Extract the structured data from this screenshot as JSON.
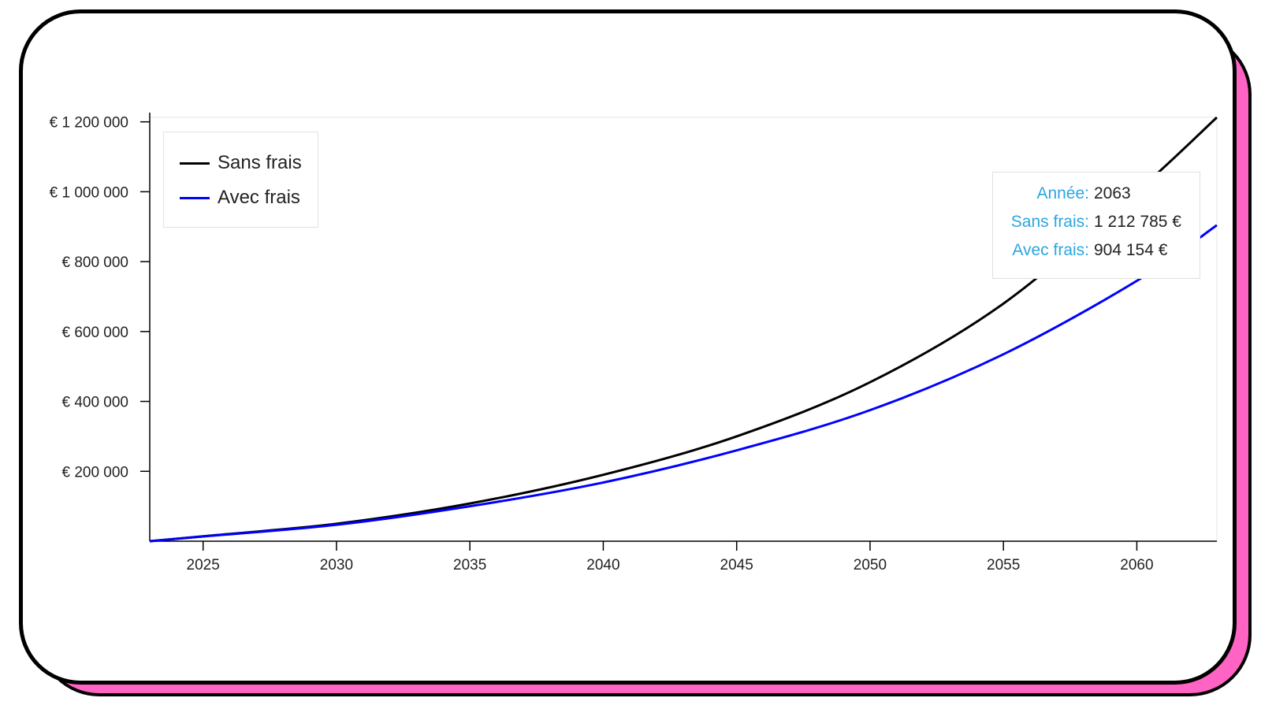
{
  "colors": {
    "card_shadow": "#ff63c3",
    "sans_frais": "#000000",
    "avec_frais": "#0000ff",
    "tooltip_key": "#2ba6e0"
  },
  "legend": [
    {
      "label": "Sans frais",
      "color": "#000000"
    },
    {
      "label": "Avec frais",
      "color": "#0000ff"
    }
  ],
  "tooltip": {
    "year_key": "Année:",
    "year_value": "2063",
    "sans_key": "Sans frais:",
    "sans_value": "1 212 785 €",
    "avec_key": "Avec frais:",
    "avec_value": "904 154 €"
  },
  "chart_data": {
    "type": "line",
    "title": "",
    "xlabel": "",
    "ylabel": "",
    "xlim": [
      2023,
      2063
    ],
    "ylim": [
      0,
      1212785
    ],
    "x_ticks": [
      2025,
      2030,
      2035,
      2040,
      2045,
      2050,
      2055,
      2060
    ],
    "x_tick_labels": [
      "2025",
      "2030",
      "2035",
      "2040",
      "2045",
      "2050",
      "2055",
      "2060"
    ],
    "y_ticks": [
      200000,
      400000,
      600000,
      800000,
      1000000,
      1200000
    ],
    "y_tick_labels": [
      "€ 200 000",
      "€ 400 000",
      "€ 600 000",
      "€ 800 000",
      "€ 1 000 000",
      "€ 1 200 000"
    ],
    "grid": false,
    "legend_position": "top-left",
    "x": [
      2023,
      2025,
      2030,
      2035,
      2040,
      2045,
      2050,
      2055,
      2060,
      2063
    ],
    "series": [
      {
        "name": "Sans frais",
        "values": [
          0,
          14000,
          50000,
          108000,
          190000,
          300000,
          455000,
          680000,
          1000000,
          1212785
        ]
      },
      {
        "name": "Avec frais",
        "values": [
          0,
          13500,
          47000,
          100000,
          168000,
          260000,
          375000,
          535000,
          745000,
          904154
        ]
      }
    ]
  }
}
